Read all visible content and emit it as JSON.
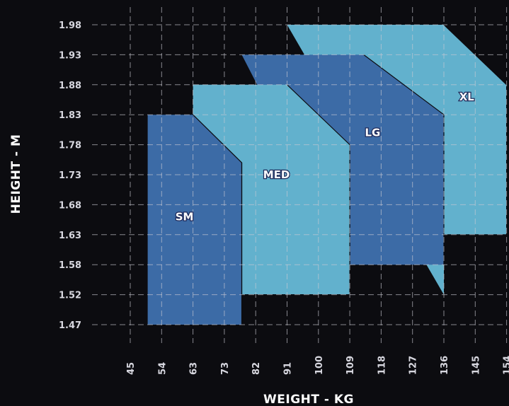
{
  "chart_data": {
    "type": "area",
    "xlabel": "WEIGHT - KG",
    "ylabel": "HEIGHT - M",
    "x_ticks": [
      "45",
      "54",
      "63",
      "73",
      "82",
      "91",
      "100",
      "109",
      "118",
      "127",
      "136",
      "145",
      "154"
    ],
    "y_ticks": [
      "1.98",
      "1.93",
      "1.88",
      "1.83",
      "1.78",
      "1.73",
      "1.68",
      "1.63",
      "1.58",
      "1.52",
      "1.47"
    ],
    "grid": true,
    "regions": [
      {
        "name": "XL",
        "color": "#62b1cd",
        "polygon": [
          [
            91,
            1.98
          ],
          [
            136,
            1.98
          ],
          [
            154,
            1.88
          ],
          [
            154,
            1.63
          ],
          [
            136,
            1.63
          ],
          [
            136,
            1.52
          ]
        ]
      },
      {
        "name": "LG",
        "color": "#3c6ba6",
        "polygon": [
          [
            78,
            1.93
          ],
          [
            113,
            1.93
          ],
          [
            136,
            1.83
          ],
          [
            136,
            1.58
          ],
          [
            109,
            1.58
          ]
        ]
      },
      {
        "name": "MED",
        "color": "#62b1cd",
        "polygon": [
          [
            63,
            1.88
          ],
          [
            91,
            1.88
          ],
          [
            109,
            1.78
          ],
          [
            109,
            1.52
          ],
          [
            78,
            1.52
          ],
          [
            78,
            1.75
          ],
          [
            63,
            1.83
          ]
        ]
      },
      {
        "name": "SM",
        "color": "#3c6ba6",
        "polygon": [
          [
            50,
            1.83
          ],
          [
            63,
            1.83
          ],
          [
            78,
            1.75
          ],
          [
            78,
            1.47
          ],
          [
            50,
            1.47
          ]
        ]
      }
    ]
  }
}
